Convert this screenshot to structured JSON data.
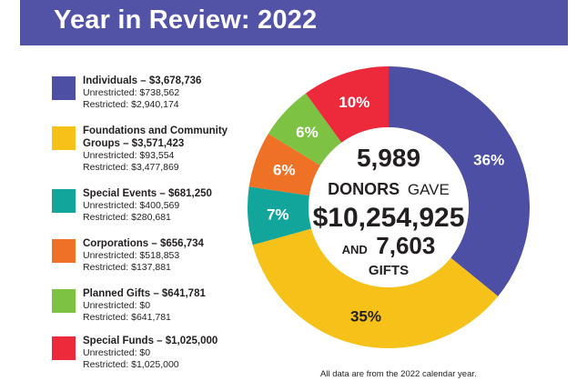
{
  "header": {
    "title": "Year in Review: 2022"
  },
  "legend": [
    {
      "heading": "Individuals – $3,678,736",
      "unrestricted": "Unrestricted: $738,562",
      "restricted": "Restricted: $2,940,174",
      "color": "#4c4fa4"
    },
    {
      "heading": "Foundations and Community Groups – $3,571,423",
      "unrestricted": "Unrestricted: $93,554",
      "restricted": "Restricted: $3,477,869",
      "color": "#f6c21a"
    },
    {
      "heading": "Special Events – $681,250",
      "unrestricted": "Unrestricted: $400,569",
      "restricted": "Restricted: $280,681",
      "color": "#12a59b"
    },
    {
      "heading": "Corporations – $656,734",
      "unrestricted": "Unrestricted: $518,853",
      "restricted": "Restricted: $137,881",
      "color": "#ef7126"
    },
    {
      "heading": "Planned Gifts – $641,781",
      "unrestricted": "Unrestricted: $0",
      "restricted": "Restricted: $641,781",
      "color": "#7dc242"
    },
    {
      "heading": "Special Funds – $1,025,000",
      "unrestricted": "Unrestricted: $0",
      "restricted": "Restricted: $1,025,000",
      "color": "#ed2a3c"
    }
  ],
  "center": {
    "donors_count": "5,989",
    "donors_word": "DONORS",
    "gave_word": "GAVE",
    "total_amount": "$10,254,925",
    "and_word": "AND",
    "gifts_count": "7,603",
    "gifts_word": "GIFTS"
  },
  "chart_data": {
    "type": "pie",
    "title": "Year in Review: 2022",
    "categories": [
      "Individuals",
      "Foundations and Community Groups",
      "Special Events",
      "Corporations",
      "Planned Gifts",
      "Special Funds"
    ],
    "values": [
      3678736,
      3571423,
      681250,
      656734,
      641781,
      1025000
    ],
    "percent_labels": [
      "36%",
      "35%",
      "7%",
      "6%",
      "6%",
      "10%"
    ],
    "colors": [
      "#4c4fa4",
      "#f6c21a",
      "#12a59b",
      "#ef7126",
      "#7dc242",
      "#ed2a3c"
    ],
    "donut": true
  },
  "footnote": "All data are from the 2022 calendar year."
}
